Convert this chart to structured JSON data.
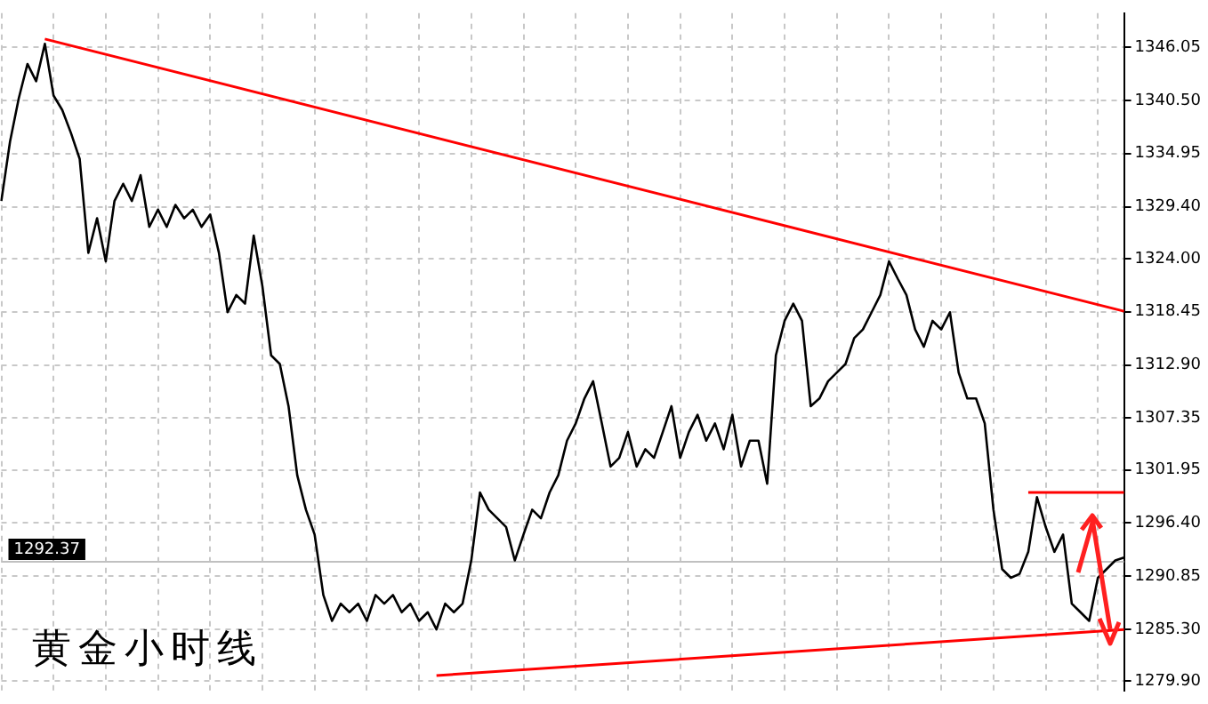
{
  "chart_data": {
    "type": "line",
    "title": "黄金小时线",
    "categories": [
      null,
      null,
      null,
      null,
      null,
      null,
      null,
      null,
      null,
      null,
      null,
      null,
      null,
      null,
      null,
      null,
      null,
      null,
      null,
      null,
      null,
      null,
      null,
      null,
      null,
      null,
      null,
      null,
      null,
      null,
      null,
      null,
      null,
      null,
      null,
      null,
      null,
      null,
      null,
      null,
      null,
      null,
      null,
      null,
      null,
      null,
      null,
      null,
      null,
      null,
      null,
      null,
      null,
      null,
      null,
      null,
      null,
      null,
      null,
      null,
      null,
      null,
      null,
      null,
      null,
      null,
      null,
      null,
      null,
      null,
      null,
      null,
      null,
      null,
      null,
      null,
      null,
      null,
      null,
      null,
      null,
      null,
      null,
      null,
      null,
      null,
      null,
      null,
      null,
      null,
      null,
      null,
      null,
      null,
      null,
      null,
      null,
      null,
      null,
      null,
      null,
      null,
      null,
      null,
      null,
      null,
      null,
      null,
      null,
      null,
      null,
      null,
      null,
      null,
      null,
      null,
      null,
      null,
      null,
      null,
      null,
      null,
      null,
      null,
      null,
      null,
      null,
      null,
      null,
      null
    ],
    "series": [
      {
        "color": "#000000",
        "values": [
          1330.0,
          1336.2,
          1340.7,
          1344.3,
          1342.5,
          1346.4,
          1341.0,
          1339.5,
          1337.1,
          1334.4,
          1324.6,
          1328.2,
          1323.7,
          1330.0,
          1331.8,
          1330.0,
          1332.7,
          1327.3,
          1329.1,
          1327.3,
          1329.6,
          1328.2,
          1329.1,
          1327.3,
          1328.6,
          1324.6,
          1318.4,
          1320.2,
          1319.3,
          1326.4,
          1321.1,
          1313.9,
          1313.0,
          1308.6,
          1301.4,
          1297.8,
          1295.2,
          1288.9,
          1286.2,
          1288.0,
          1287.1,
          1288.0,
          1286.2,
          1288.9,
          1288.0,
          1288.9,
          1287.1,
          1288.0,
          1286.2,
          1287.1,
          1285.3,
          1288.0,
          1287.1,
          1288.0,
          1292.5,
          1299.6,
          1297.8,
          1296.9,
          1296.0,
          1292.5,
          1295.2,
          1297.8,
          1296.9,
          1299.6,
          1301.4,
          1305.0,
          1306.8,
          1309.4,
          1311.2,
          1306.8,
          1302.3,
          1303.2,
          1305.9,
          1302.3,
          1304.1,
          1303.2,
          1305.9,
          1308.6,
          1303.2,
          1305.9,
          1307.7,
          1305.0,
          1306.8,
          1304.1,
          1307.7,
          1302.3,
          1305.0,
          1305.0,
          1300.5,
          1313.9,
          1317.5,
          1319.3,
          1317.5,
          1308.6,
          1309.4,
          1311.2,
          1312.1,
          1313.0,
          1315.7,
          1316.6,
          1318.4,
          1320.2,
          1323.7,
          1321.9,
          1320.2,
          1316.6,
          1314.8,
          1317.5,
          1316.6,
          1318.4,
          1312.1,
          1309.4,
          1309.4,
          1306.8,
          1297.8,
          1291.6,
          1290.7,
          1291.1,
          1293.4,
          1299.1,
          1296.0,
          1293.4,
          1295.2,
          1288.0,
          1287.1,
          1286.2,
          1290.7,
          1291.6,
          1292.5,
          1292.8
        ]
      },
      {
        "type": "line",
        "color": "#ff0000",
        "values": [
          null,
          null,
          null,
          null,
          null,
          1346.9,
          null,
          null,
          null,
          null,
          null,
          null,
          null,
          null,
          null,
          null,
          null,
          null,
          null,
          null,
          null,
          null,
          null,
          null,
          null,
          null,
          null,
          null,
          null,
          null,
          null,
          null,
          null,
          null,
          null,
          null,
          null,
          null,
          null,
          null,
          null,
          null,
          null,
          null,
          null,
          null,
          null,
          null,
          null,
          null,
          null,
          null,
          null,
          null,
          null,
          null,
          null,
          null,
          null,
          null,
          null,
          null,
          null,
          null,
          null,
          null,
          null,
          null,
          null,
          null,
          null,
          null,
          null,
          null,
          null,
          null,
          null,
          null,
          null,
          null,
          null,
          null,
          null,
          null,
          null,
          null,
          null,
          null,
          null,
          null,
          null,
          null,
          null,
          null,
          null,
          null,
          null,
          null,
          null,
          null,
          null,
          null,
          null,
          null,
          null,
          null,
          null,
          null,
          null,
          null,
          null,
          null,
          null,
          null,
          null,
          null,
          null,
          null,
          null,
          null,
          null,
          null,
          null,
          null,
          null,
          null,
          null,
          null,
          null,
          1318.5
        ]
      },
      {
        "type": "line",
        "color": "#ff0000",
        "values": [
          null,
          null,
          null,
          null,
          null,
          null,
          null,
          null,
          null,
          null,
          null,
          null,
          null,
          null,
          null,
          null,
          null,
          null,
          null,
          null,
          null,
          null,
          null,
          null,
          null,
          null,
          null,
          null,
          null,
          null,
          null,
          null,
          null,
          null,
          null,
          null,
          null,
          null,
          null,
          null,
          null,
          null,
          null,
          null,
          null,
          null,
          null,
          null,
          null,
          null,
          1280.5,
          null,
          null,
          null,
          null,
          null,
          null,
          null,
          null,
          null,
          null,
          null,
          null,
          null,
          null,
          null,
          null,
          null,
          null,
          null,
          null,
          null,
          null,
          null,
          null,
          null,
          null,
          null,
          null,
          null,
          null,
          null,
          null,
          null,
          null,
          null,
          null,
          null,
          null,
          null,
          null,
          null,
          null,
          null,
          null,
          null,
          null,
          null,
          null,
          null,
          null,
          null,
          null,
          null,
          null,
          null,
          null,
          null,
          null,
          null,
          null,
          null,
          null,
          null,
          null,
          null,
          null,
          null,
          null,
          null,
          null,
          null,
          null,
          null,
          null,
          null,
          null,
          null,
          null,
          1285.3
        ]
      },
      {
        "type": "line",
        "color": "#ff0000",
        "values": [
          null,
          null,
          null,
          null,
          null,
          null,
          null,
          null,
          null,
          null,
          null,
          null,
          null,
          null,
          null,
          null,
          null,
          null,
          null,
          null,
          null,
          null,
          null,
          null,
          null,
          null,
          null,
          null,
          null,
          null,
          null,
          null,
          null,
          null,
          null,
          null,
          null,
          null,
          null,
          null,
          null,
          null,
          null,
          null,
          null,
          null,
          null,
          null,
          null,
          null,
          null,
          null,
          null,
          null,
          null,
          null,
          null,
          null,
          null,
          null,
          null,
          null,
          null,
          null,
          null,
          null,
          null,
          null,
          null,
          null,
          null,
          null,
          null,
          null,
          null,
          null,
          null,
          null,
          null,
          null,
          null,
          null,
          null,
          null,
          null,
          null,
          null,
          null,
          null,
          null,
          null,
          null,
          null,
          null,
          null,
          null,
          null,
          null,
          null,
          null,
          null,
          null,
          null,
          null,
          null,
          null,
          null,
          null,
          null,
          null,
          null,
          null,
          null,
          null,
          null,
          null,
          null,
          null,
          1299.6,
          null,
          null,
          null,
          null,
          null,
          null,
          null,
          null,
          null,
          null,
          1299.6
        ]
      }
    ],
    "ylim": [
      1278.9,
      1349.6
    ],
    "yticks": [
      {
        "value": 1346.05,
        "label": "1346.05"
      },
      {
        "value": 1340.5,
        "label": "1340.50"
      },
      1334.95,
      {
        "value": 1329.4,
        "label": "1329.40"
      },
      {
        "value": 1324.0,
        "label": "1324.00"
      },
      1318.45,
      {
        "value": 1312.9,
        "label": "1312.90"
      },
      1307.35,
      1301.95,
      {
        "value": 1296.4,
        "label": "1296.40"
      },
      1290.85,
      {
        "value": 1285.3,
        "label": "1285.30"
      },
      {
        "value": 1279.9,
        "label": "1279.90"
      }
    ],
    "ref_lines": [
      {
        "axis": "y",
        "value": 1292.37,
        "label": "1292.37",
        "color": "#c0c0c0"
      }
    ],
    "grid": true,
    "tick_labels": "y",
    "marker": "none"
  }
}
